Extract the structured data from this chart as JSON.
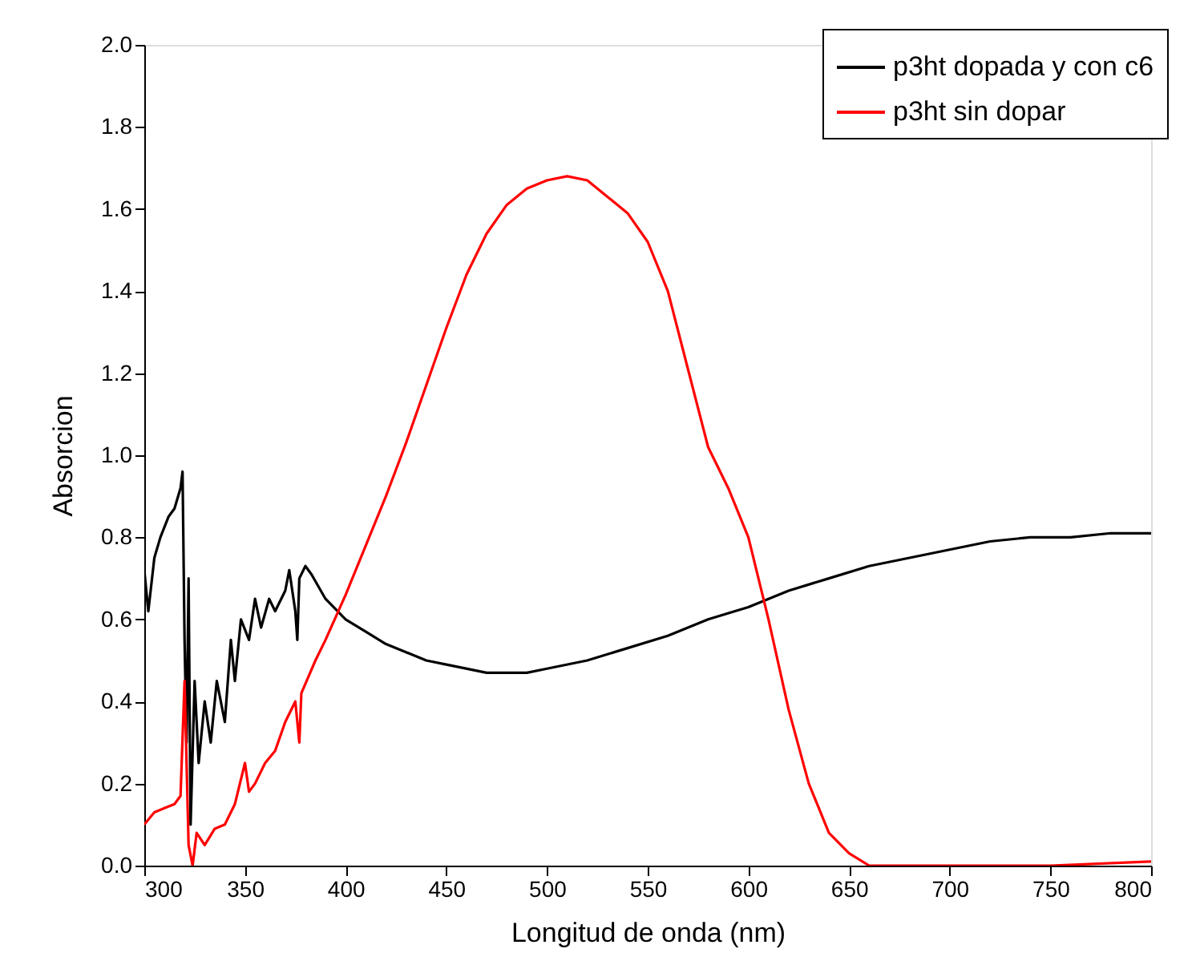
{
  "chart_data": {
    "type": "line",
    "xlabel": "Longitud de onda (nm)",
    "ylabel": "Absorcion",
    "xlim": [
      300,
      800
    ],
    "xticks": [
      300,
      350,
      400,
      450,
      500,
      550,
      600,
      650,
      700,
      750,
      800
    ],
    "ylim": [
      0,
      2
    ],
    "yticks": [
      {
        "value": 0,
        "label": "0.0"
      },
      0.2,
      0.4,
      0.6,
      0.8,
      {
        "value": 1,
        "label": "1.0"
      },
      1.2,
      1.4,
      1.6,
      1.8,
      {
        "value": 2,
        "label": "2.0"
      }
    ],
    "grid": false,
    "legend": "top right",
    "marker": "none",
    "line_style": "solid",
    "series": [
      {
        "name": "p3ht dopada y con c6",
        "color": "#000000",
        "x": [
          300,
          302,
          305,
          308,
          312,
          315,
          318,
          319,
          320,
          321,
          322,
          323,
          325,
          327,
          330,
          333,
          336,
          340,
          343,
          345,
          348,
          352,
          355,
          358,
          362,
          365,
          370,
          372,
          375,
          376,
          377,
          380,
          383,
          390,
          400,
          410,
          420,
          430,
          440,
          450,
          470,
          490,
          500,
          520,
          540,
          560,
          580,
          600,
          620,
          640,
          660,
          680,
          700,
          720,
          740,
          760,
          780,
          800
        ],
        "values": [
          0.72,
          0.62,
          0.75,
          0.8,
          0.85,
          0.87,
          0.92,
          0.96,
          0.55,
          0.3,
          0.7,
          0.1,
          0.45,
          0.25,
          0.4,
          0.3,
          0.45,
          0.35,
          0.55,
          0.45,
          0.6,
          0.55,
          0.65,
          0.58,
          0.65,
          0.62,
          0.67,
          0.72,
          0.62,
          0.55,
          0.7,
          0.73,
          0.71,
          0.65,
          0.6,
          0.57,
          0.54,
          0.52,
          0.5,
          0.49,
          0.47,
          0.47,
          0.48,
          0.5,
          0.53,
          0.56,
          0.6,
          0.63,
          0.67,
          0.7,
          0.73,
          0.75,
          0.77,
          0.79,
          0.8,
          0.8,
          0.81,
          0.81
        ]
      },
      {
        "name": "p3ht sin dopar",
        "color": "#ff0000",
        "x": [
          300,
          305,
          310,
          315,
          318,
          320,
          322,
          324,
          326,
          330,
          335,
          340,
          345,
          350,
          352,
          355,
          360,
          365,
          370,
          375,
          377,
          378,
          385,
          390,
          400,
          410,
          420,
          430,
          440,
          450,
          460,
          470,
          480,
          490,
          500,
          510,
          520,
          530,
          540,
          550,
          560,
          570,
          580,
          590,
          600,
          610,
          620,
          630,
          640,
          650,
          660,
          680,
          700,
          750,
          800
        ],
        "values": [
          0.1,
          0.13,
          0.14,
          0.15,
          0.17,
          0.45,
          0.05,
          0.0,
          0.08,
          0.05,
          0.09,
          0.1,
          0.15,
          0.25,
          0.18,
          0.2,
          0.25,
          0.28,
          0.35,
          0.4,
          0.3,
          0.42,
          0.5,
          0.55,
          0.66,
          0.78,
          0.9,
          1.03,
          1.17,
          1.31,
          1.44,
          1.54,
          1.61,
          1.65,
          1.67,
          1.68,
          1.67,
          1.63,
          1.59,
          1.52,
          1.4,
          1.21,
          1.02,
          0.92,
          0.8,
          0.6,
          0.38,
          0.2,
          0.08,
          0.03,
          0.0,
          0.0,
          0.0,
          0.0,
          0.01
        ]
      }
    ]
  }
}
